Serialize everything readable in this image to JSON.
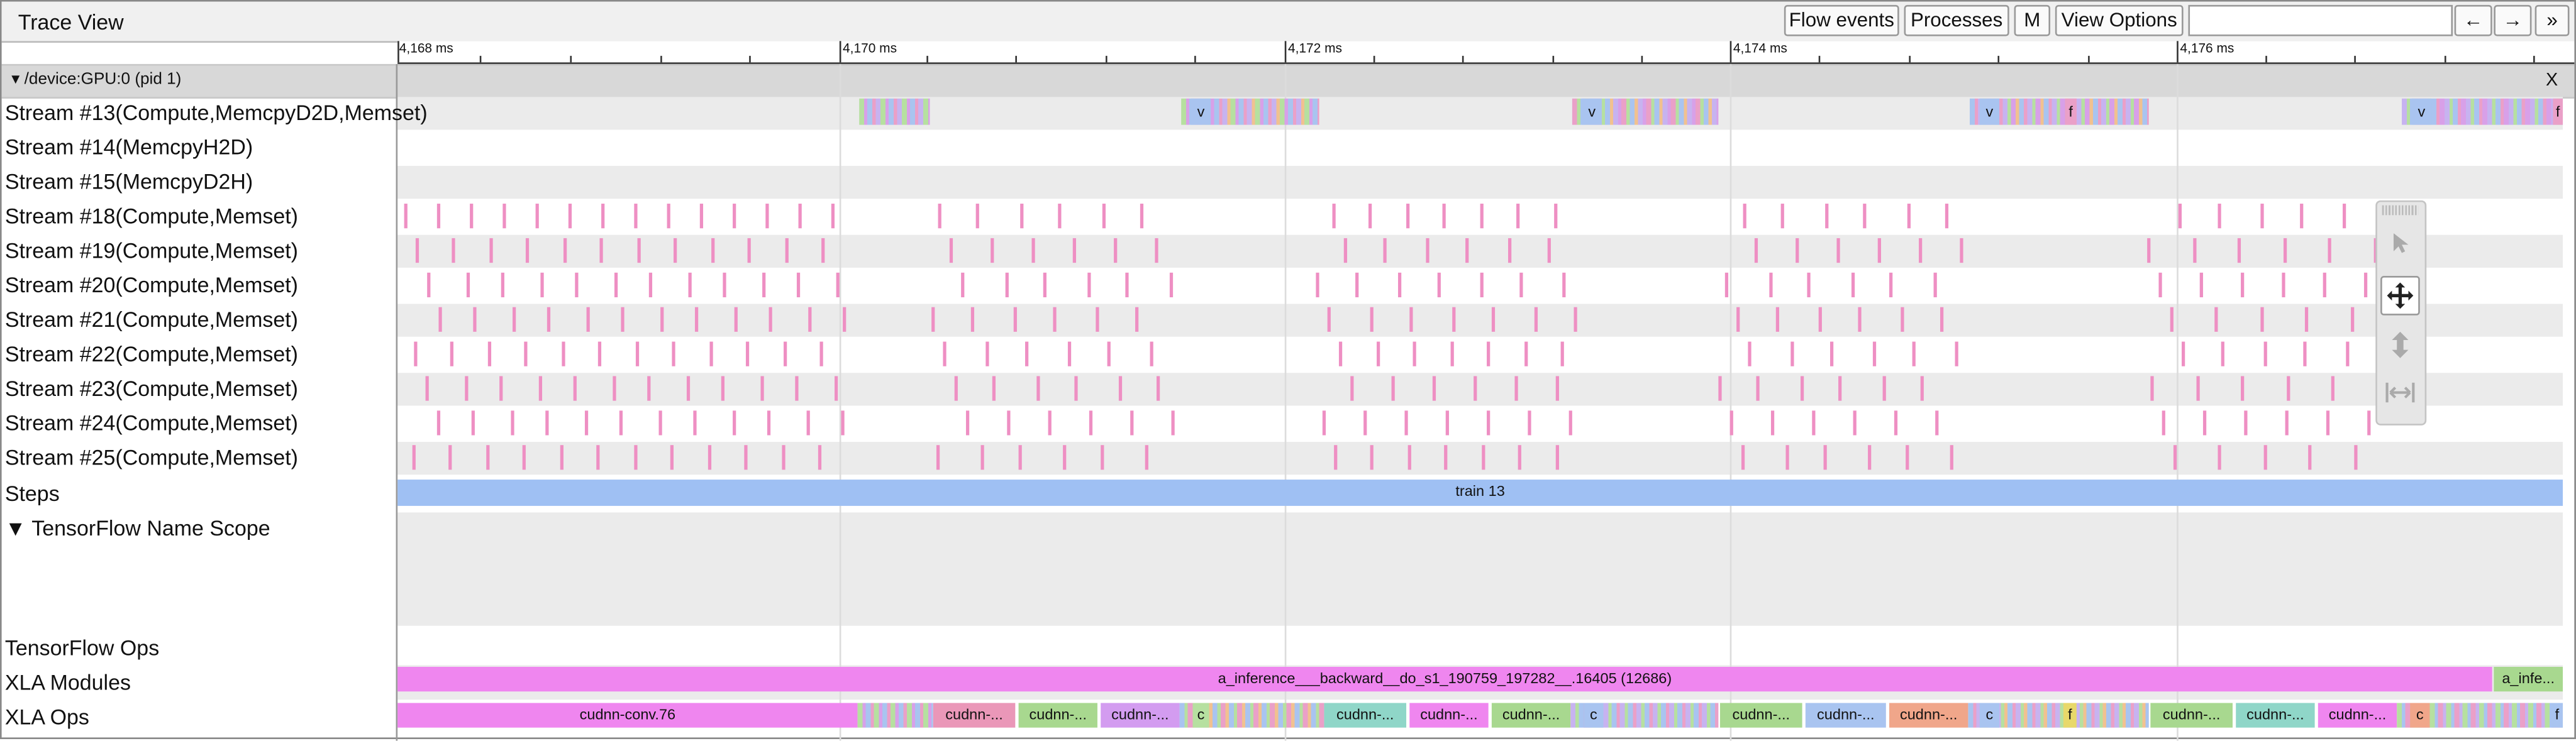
{
  "window": {
    "title": "Trace View"
  },
  "toolbar": {
    "flow_events": "Flow events",
    "processes": "Processes",
    "m": "M",
    "view_options": "View Options",
    "search_placeholder": "",
    "prev": "←",
    "next": "→",
    "more": "»"
  },
  "ruler": {
    "labels": [
      "4,168 ms",
      "4,170 ms",
      "4,172 ms",
      "4,174 ms",
      "4,176 ms"
    ]
  },
  "process": {
    "label": "▾ /device:GPU:0 (pid 1)",
    "close": "X"
  },
  "rows": {
    "stream13": "Stream #13(Compute,MemcpyD2D,Memset)",
    "stream14": "Stream #14(MemcpyH2D)",
    "stream15": "Stream #15(MemcpyD2H)",
    "stream18": "Stream #18(Compute,Memset)",
    "stream19": "Stream #19(Compute,Memset)",
    "stream20": "Stream #20(Compute,Memset)",
    "stream21": "Stream #21(Compute,Memset)",
    "stream22": "Stream #22(Compute,Memset)",
    "stream23": "Stream #23(Compute,Memset)",
    "stream24": "Stream #24(Compute,Memset)",
    "stream25": "Stream #25(Compute,Memset)",
    "steps": "Steps",
    "tf_name_scope": "▼  TensorFlow Name Scope",
    "tf_ops": "TensorFlow Ops",
    "xla_modules": "XLA Modules",
    "xla_ops": "XLA Ops"
  },
  "steps": {
    "label": "train 13"
  },
  "xla_modules": {
    "main": "a_inference___backward__do_s1_190759_197282__.16405 (12686)",
    "tail": "a_infe..."
  },
  "stream13_labels": {
    "v1": "v",
    "v2": "v",
    "v3": "v",
    "f1": "f",
    "v4": "v",
    "f2": "f"
  },
  "xla_ops": {
    "conv": "cudnn-conv.76",
    "s1": "cudnn-...",
    "s2": "cudnn-...",
    "s3": "cudnn-...",
    "c1": "c",
    "s4": "cudnn-...",
    "s5": "cudnn-...",
    "s6": "cudnn-...",
    "c2": "c",
    "s7": "cudnn-...",
    "s8": "cudnn-...",
    "s9": "cudnn-...",
    "c3": "c",
    "f1": "f",
    "s10": "cudnn-...",
    "s11": "cudnn-...",
    "s12": "cudnn-...",
    "c4": "c",
    "f2": "f"
  },
  "tools": {
    "select": "select-icon",
    "pan": "pan-icon",
    "zoom": "zoom-icon",
    "timing": "timing-icon"
  },
  "colors": {
    "memset_mark": "#ee8fc3",
    "steps": "#9fc0f3",
    "xla_module": "#ef86ef",
    "conv": "#ef86ef"
  }
}
